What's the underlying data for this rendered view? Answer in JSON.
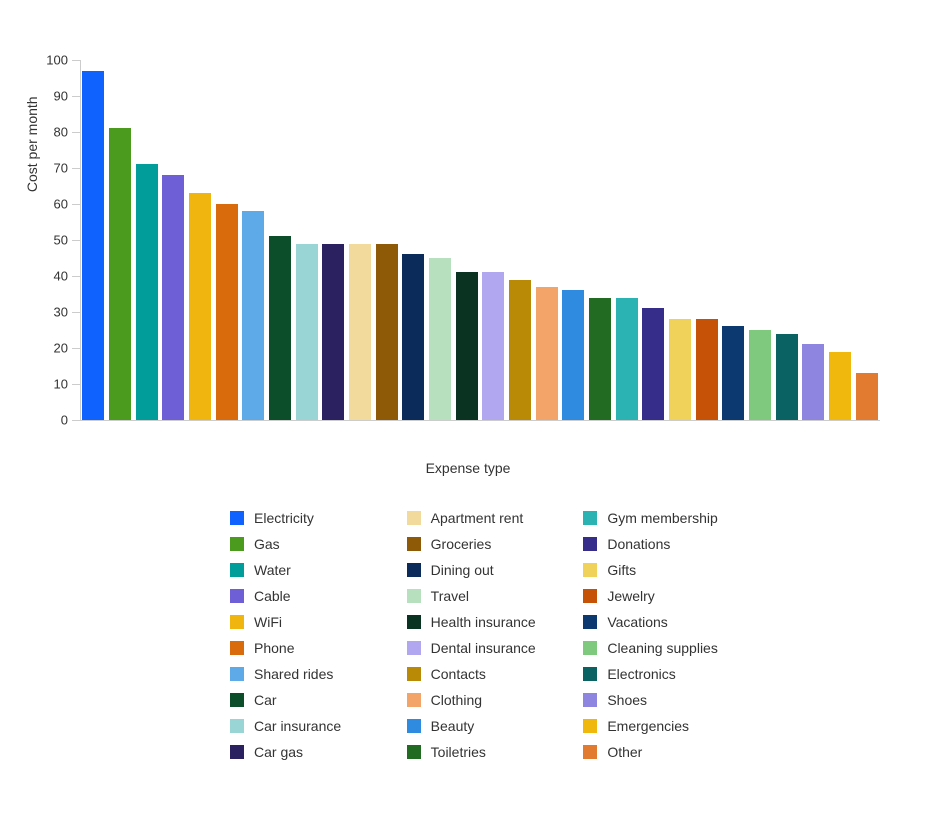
{
  "chart": {
    "type": "bar",
    "y_axis": {
      "label": "Cost per month",
      "min": 0,
      "max": 100,
      "tick_step": 10,
      "label_fontsize": 14,
      "tick_fontsize": 13,
      "axis_color": "#cccccc",
      "text_color": "#333333"
    },
    "x_axis": {
      "label": "Expense type",
      "label_fontsize": 14,
      "text_color": "#333333"
    },
    "background_color": "#ffffff",
    "bar_width_ratio": 0.82,
    "series": [
      {
        "name": "Electricity",
        "value": 97,
        "color": "#0f62fe"
      },
      {
        "name": "Gas",
        "value": 81,
        "color": "#4b9b1f"
      },
      {
        "name": "Water",
        "value": 71,
        "color": "#009d9a"
      },
      {
        "name": "Cable",
        "value": 68,
        "color": "#6f5fd6"
      },
      {
        "name": "WiFi",
        "value": 63,
        "color": "#f1b50f"
      },
      {
        "name": "Phone",
        "value": 60,
        "color": "#d96b0c"
      },
      {
        "name": "Shared rides",
        "value": 58,
        "color": "#5ea9e8"
      },
      {
        "name": "Car",
        "value": 51,
        "color": "#0c4d2a"
      },
      {
        "name": "Car insurance",
        "value": 49,
        "color": "#9ad5d5"
      },
      {
        "name": "Car gas",
        "value": 49,
        "color": "#2b2060"
      },
      {
        "name": "Apartment rent",
        "value": 49,
        "color": "#f1da9c"
      },
      {
        "name": "Groceries",
        "value": 49,
        "color": "#8f5a07"
      },
      {
        "name": "Dining out",
        "value": 46,
        "color": "#0b2b5b"
      },
      {
        "name": "Travel",
        "value": 45,
        "color": "#b7e0bf"
      },
      {
        "name": "Health insurance",
        "value": 41,
        "color": "#0b3322"
      },
      {
        "name": "Dental insurance",
        "value": 41,
        "color": "#b0a7f0"
      },
      {
        "name": "Contacts",
        "value": 39,
        "color": "#b88a06"
      },
      {
        "name": "Clothing",
        "value": 37,
        "color": "#f3a469"
      },
      {
        "name": "Beauty",
        "value": 36,
        "color": "#2f8be0"
      },
      {
        "name": "Toiletries",
        "value": 34,
        "color": "#226b23"
      },
      {
        "name": "Gym membership",
        "value": 34,
        "color": "#2bb3b3"
      },
      {
        "name": "Donations",
        "value": 31,
        "color": "#362c8a"
      },
      {
        "name": "Gifts",
        "value": 28,
        "color": "#f0d25a"
      },
      {
        "name": "Jewelry",
        "value": 28,
        "color": "#c65207"
      },
      {
        "name": "Vacations",
        "value": 26,
        "color": "#0c3a70"
      },
      {
        "name": "Cleaning supplies",
        "value": 25,
        "color": "#7fc97f"
      },
      {
        "name": "Electronics",
        "value": 24,
        "color": "#0a6262"
      },
      {
        "name": "Shoes",
        "value": 21,
        "color": "#8e85e0"
      },
      {
        "name": "Emergencies",
        "value": 19,
        "color": "#f0b80c"
      },
      {
        "name": "Other",
        "value": 13,
        "color": "#e27b2f"
      }
    ]
  }
}
